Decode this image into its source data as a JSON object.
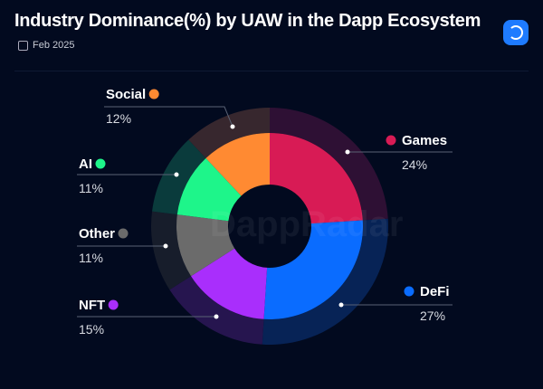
{
  "header": {
    "title": "Industry Dominance(%) by UAW in the Dapp Ecosystem",
    "date": "Feb 2025",
    "logo_icon": "dappradar-logo-icon"
  },
  "watermark": "DappRadar",
  "chart_data": {
    "type": "pie",
    "title": "Industry Dominance(%) by UAW in the Dapp Ecosystem",
    "categories": [
      "Games",
      "DeFi",
      "NFT",
      "Other",
      "AI",
      "Social"
    ],
    "values": [
      24,
      27,
      15,
      11,
      11,
      12
    ],
    "labels": [
      "24%",
      "27%",
      "15%",
      "11%",
      "11%",
      "12%"
    ],
    "colors": [
      "#d81b55",
      "#0a6cff",
      "#a92efc",
      "#6b6b6b",
      "#1ef58a",
      "#ff8a32"
    ],
    "ring_colors": [
      "#2e1034",
      "#072356",
      "#26154f",
      "#171d2b",
      "#0a3b3c",
      "#37272e"
    ]
  }
}
